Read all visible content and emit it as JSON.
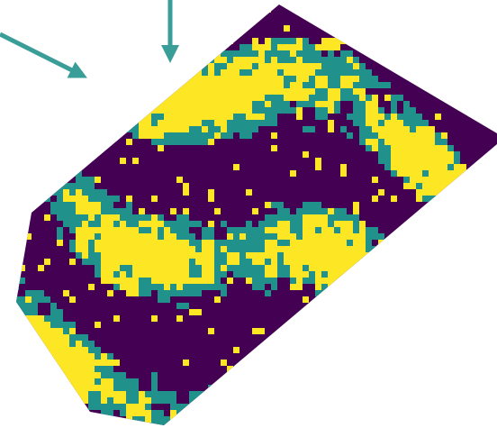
{
  "map": {
    "palette": [
      "#440154",
      "#21918c",
      "#fde725"
    ]
  }
}
